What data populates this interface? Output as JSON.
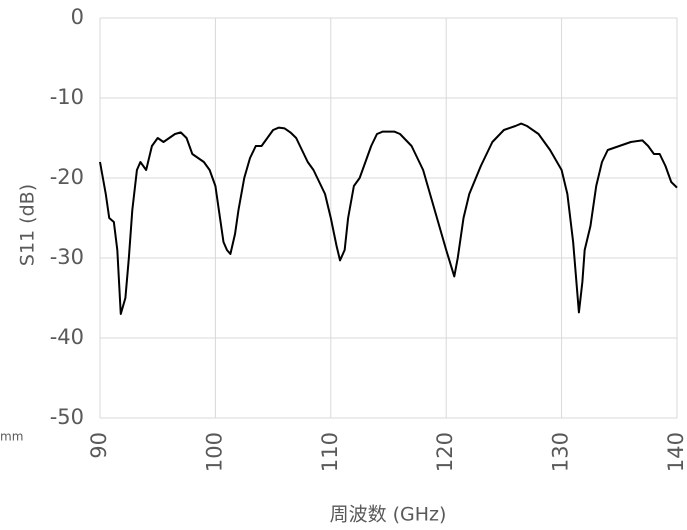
{
  "chart_data": {
    "type": "line",
    "xlabel": "周波数 (GHz)",
    "ylabel": "S11 (dB)",
    "annotation": "mm",
    "xlim": [
      90,
      140
    ],
    "xticks": [
      90,
      100,
      110,
      120,
      130,
      140
    ],
    "ylim": [
      -50,
      0
    ],
    "yticks": [
      -50,
      -40,
      -30,
      -20,
      -10,
      0
    ],
    "grid": true,
    "series": [
      {
        "color": "#000000",
        "x": [
          90,
          90.5,
          90.8,
          91.2,
          91.5,
          91.8,
          92.0,
          92.2,
          92.5,
          92.8,
          93.2,
          93.5,
          94,
          94.5,
          95,
          95.5,
          96,
          96.5,
          97,
          97.5,
          98,
          98.5,
          99,
          99.5,
          100,
          100.3,
          100.7,
          101,
          101.3,
          101.7,
          102,
          102.5,
          103,
          103.5,
          104,
          104.5,
          105,
          105.5,
          106,
          106.5,
          107,
          107.5,
          108,
          108.5,
          109,
          109.5,
          110,
          110.5,
          110.8,
          111.2,
          111.5,
          112,
          112.5,
          113,
          113.5,
          114,
          114.5,
          115,
          115.5,
          116,
          117,
          118,
          119,
          120,
          120.7,
          121,
          121.5,
          122,
          123,
          124,
          125,
          126,
          126.5,
          127,
          128,
          129,
          130,
          130.5,
          131,
          131.5,
          131.8,
          132,
          132.5,
          133,
          133.5,
          134,
          135,
          136,
          137,
          137.5,
          138,
          138.5,
          139,
          139.5,
          140
        ],
        "values": [
          -18,
          -22,
          -25,
          -25.5,
          -29,
          -37,
          -36,
          -35,
          -30,
          -24,
          -19,
          -18,
          -19,
          -16,
          -15,
          -15.5,
          -15,
          -14.5,
          -14.3,
          -15,
          -17,
          -17.5,
          -18,
          -19,
          -21,
          -24,
          -28,
          -29,
          -29.5,
          -27,
          -24,
          -20,
          -17.5,
          -16,
          -16,
          -15,
          -14,
          -13.7,
          -13.8,
          -14.3,
          -15,
          -16.5,
          -18,
          -19,
          -20.5,
          -22,
          -25,
          -28.5,
          -30.3,
          -29,
          -25,
          -21,
          -20,
          -18,
          -16,
          -14.5,
          -14.2,
          -14.2,
          -14.2,
          -14.5,
          -16,
          -19,
          -24,
          -29,
          -32.3,
          -30,
          -25,
          -22,
          -18.5,
          -15.5,
          -14,
          -13.5,
          -13.2,
          -13.5,
          -14.5,
          -16.5,
          -19,
          -22,
          -28,
          -36.8,
          -33,
          -29,
          -26,
          -21,
          -18,
          -16.5,
          -16,
          -15.5,
          -15.3,
          -16,
          -17,
          -17,
          -18.5,
          -20.5,
          -21.2
        ]
      }
    ]
  }
}
